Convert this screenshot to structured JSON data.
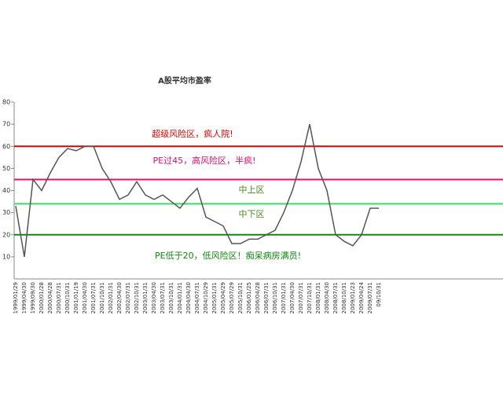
{
  "chart_data": {
    "type": "line",
    "title": "A股平均市盈率",
    "categories": [
      "1999/01/29",
      "1999/04/30",
      "1999/09/30",
      "2000/01/28",
      "2000/04/28",
      "2000/07/31",
      "2000/10/31",
      "2001/01/19",
      "2001/04/30",
      "2001/07/31",
      "2001/10/31",
      "2002/01/31",
      "2002/04/30",
      "2002/07/31",
      "2002/10/31",
      "2003/01/31",
      "2003/04/30",
      "2003/07/31",
      "2003/10/31",
      "2004/01/31",
      "2004/04/30",
      "2004/07/31",
      "2004/10/29",
      "2005/01/31",
      "2005/04/29",
      "2005/07/29",
      "2005/10/31",
      "2006/01/25",
      "2006/04/28",
      "2006/07/31",
      "2006/10/31",
      "2007/01/31",
      "2007/04/30",
      "2007/07/31",
      "2007/10/31",
      "2008/01/31",
      "2008/04/30",
      "2008/07/31",
      "2008/10/31",
      "2009/01/23",
      "2009/04/24",
      "2009/07/31",
      "09/10/31"
    ],
    "series": [
      {
        "color": "#555555",
        "values": [
          33,
          10,
          45,
          40,
          48,
          55,
          59,
          58,
          60,
          60,
          50,
          44,
          36,
          38,
          44,
          38,
          36,
          38,
          35,
          32,
          37,
          41,
          28,
          26,
          24,
          16,
          16,
          18,
          18,
          20,
          22,
          30,
          40,
          53,
          70,
          50,
          40,
          20,
          17,
          15,
          20,
          32,
          32
        ]
      }
    ],
    "ylim": [
      0,
      80
    ],
    "yticks": [
      10,
      20,
      30,
      40,
      50,
      60,
      70,
      80
    ],
    "reference_lines": [
      {
        "value": 60,
        "color": "#e00000",
        "label": "超级风险区，疯人院!"
      },
      {
        "value": 45,
        "color": "#e0106a",
        "label": "PE过45，高风险区，半疯!"
      },
      {
        "value": 34,
        "color": "#33dd66"
      },
      {
        "value": 20,
        "color": "#118811",
        "label": "PE低于20，低风险区！痴呆病房满员!"
      }
    ],
    "zone_labels": [
      "中上区",
      "中下区"
    ]
  }
}
